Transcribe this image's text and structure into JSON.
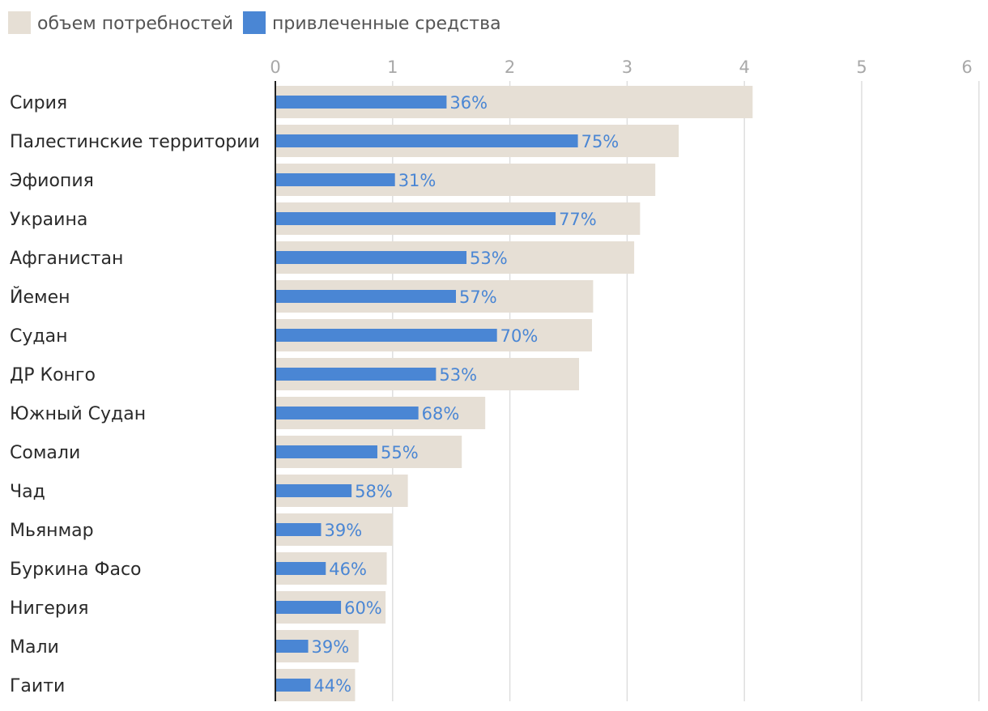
{
  "chart_data": {
    "type": "bar",
    "orientation": "horizontal",
    "title": "",
    "xlabel": "",
    "ylabel": "",
    "xlim": [
      0,
      6
    ],
    "ticks": [
      0,
      1,
      2,
      3,
      4,
      5,
      6
    ],
    "grid": true,
    "legend_position": "top-left",
    "categories": [
      "Сирия",
      "Палестинские территории",
      "Эфиопия",
      "Украина",
      "Афганистан",
      "Йемен",
      "Судан",
      "ДР Конго",
      "Южный Судан",
      "Сомали",
      "Чад",
      "Мьянмар",
      "Буркина Фасо",
      "Нигерия",
      "Мали",
      "Гаити"
    ],
    "series": [
      {
        "name": "объем потребностей",
        "color": "#e6dfd5",
        "values": [
          4.07,
          3.44,
          3.24,
          3.11,
          3.06,
          2.71,
          2.7,
          2.59,
          1.79,
          1.59,
          1.13,
          1.0,
          0.95,
          0.94,
          0.71,
          0.68
        ]
      },
      {
        "name": "привлеченные средства",
        "color": "#4a86d4",
        "values": [
          1.46,
          2.58,
          1.02,
          2.39,
          1.63,
          1.54,
          1.89,
          1.37,
          1.22,
          0.87,
          0.65,
          0.39,
          0.43,
          0.56,
          0.28,
          0.3
        ]
      }
    ],
    "data_labels": [
      "36%",
      "75%",
      "31%",
      "77%",
      "53%",
      "57%",
      "70%",
      "53%",
      "68%",
      "55%",
      "58%",
      "39%",
      "46%",
      "60%",
      "39%",
      "44%"
    ]
  }
}
